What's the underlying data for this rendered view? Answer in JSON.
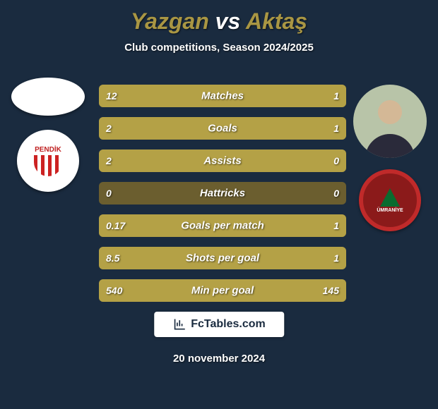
{
  "title": {
    "player1": "Yazgan",
    "vs": "vs",
    "player2": "Aktaş",
    "player1_color": "#a99643",
    "vs_color": "#ffffff",
    "player2_color": "#a99643"
  },
  "subtitle": "Club competitions, Season 2024/2025",
  "background_color": "#1a2b3f",
  "bar_base_color": "#867536",
  "bar_left_color": "#b4a146",
  "bar_right_color": "#b4a146",
  "bar_neutral_color": "#6b5e2f",
  "stats": [
    {
      "label": "Matches",
      "left_val": "12",
      "right_val": "1",
      "left_pct": 92,
      "right_pct": 8
    },
    {
      "label": "Goals",
      "left_val": "2",
      "right_val": "1",
      "left_pct": 67,
      "right_pct": 33
    },
    {
      "label": "Assists",
      "left_val": "2",
      "right_val": "0",
      "left_pct": 100,
      "right_pct": 0
    },
    {
      "label": "Hattricks",
      "left_val": "0",
      "right_val": "0",
      "left_pct": 0,
      "right_pct": 0
    },
    {
      "label": "Goals per match",
      "left_val": "0.17",
      "right_val": "1",
      "left_pct": 15,
      "right_pct": 85
    },
    {
      "label": "Shots per goal",
      "left_val": "8.5",
      "right_val": "1",
      "left_pct": 89,
      "right_pct": 11
    },
    {
      "label": "Min per goal",
      "left_val": "540",
      "right_val": "145",
      "left_pct": 79,
      "right_pct": 21
    }
  ],
  "player1": {
    "avatar_bg": "#ffffff",
    "club_name": "PENDİK",
    "club_badge_bg": "#ffffff",
    "club_badge_text_color": "#c02222"
  },
  "player2": {
    "avatar_bg": "#b8c4a8",
    "club_name": "ÜMRANİYE",
    "club_badge_bg": "#8b1a1a",
    "club_badge_ring": "#c02a2a",
    "club_badge_text_color": "#ffffff"
  },
  "footer": {
    "brand": "FcTables.com",
    "date": "20 november 2024"
  }
}
